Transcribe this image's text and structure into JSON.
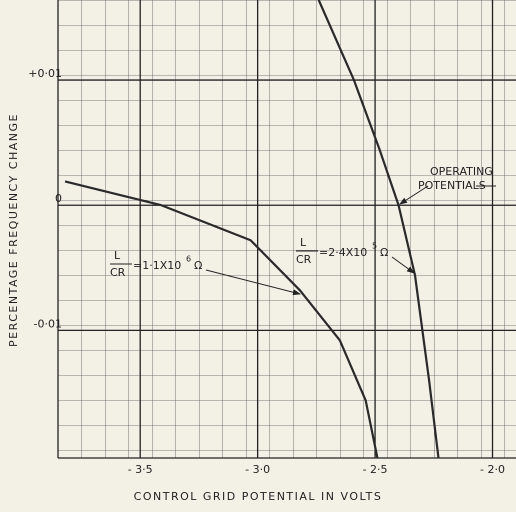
{
  "chart_data": {
    "type": "line",
    "x_label": "CONTROL GRID POTENTIAL IN VOLTS",
    "y_label": "PERCENTAGE FREQUENCY CHANGE",
    "xlim": [
      -3.85,
      -1.9
    ],
    "ylim": [
      -0.0202,
      0.0164
    ],
    "xticks": [
      {
        "value": -3.5,
        "label": "- 3·5"
      },
      {
        "value": -3.0,
        "label": "- 3·0"
      },
      {
        "value": -2.5,
        "label": "- 2·5"
      },
      {
        "value": -2.0,
        "label": "- 2·0"
      }
    ],
    "yticks": [
      {
        "value": 0.01,
        "label": "+0·01"
      },
      0,
      {
        "value": -0.01,
        "label": "-0·01"
      }
    ],
    "grid": true,
    "series": [
      {
        "color": "#2a2a2a",
        "x": [
          -3.82,
          -3.41,
          -3.03,
          -2.82,
          -2.65,
          -2.54,
          -2.49
        ],
        "values": [
          0.0019,
          0,
          -0.0028,
          -0.0068,
          -0.0108,
          -0.0156,
          -0.0202
        ]
      },
      {
        "color": "#2a2a2a",
        "x": [
          -2.74,
          -2.59,
          -2.48,
          -2.4,
          -2.33,
          -2.27,
          -2.23
        ],
        "values": [
          0.0164,
          0.01,
          0.0044,
          0,
          -0.0056,
          -0.014,
          -0.0202
        ]
      }
    ],
    "annotations": [
      {
        "lines": [
          "OPERATING",
          "POTENTIALS"
        ]
      },
      {
        "numerator": "L",
        "denominator": "CR",
        "text": "=1·1X10",
        "exponent": "6",
        "unit": "Ω"
      },
      {
        "numerator": "L",
        "denominator": "CR",
        "text": "=2·4X10",
        "exponent": "5",
        "unit": "Ω"
      }
    ]
  }
}
